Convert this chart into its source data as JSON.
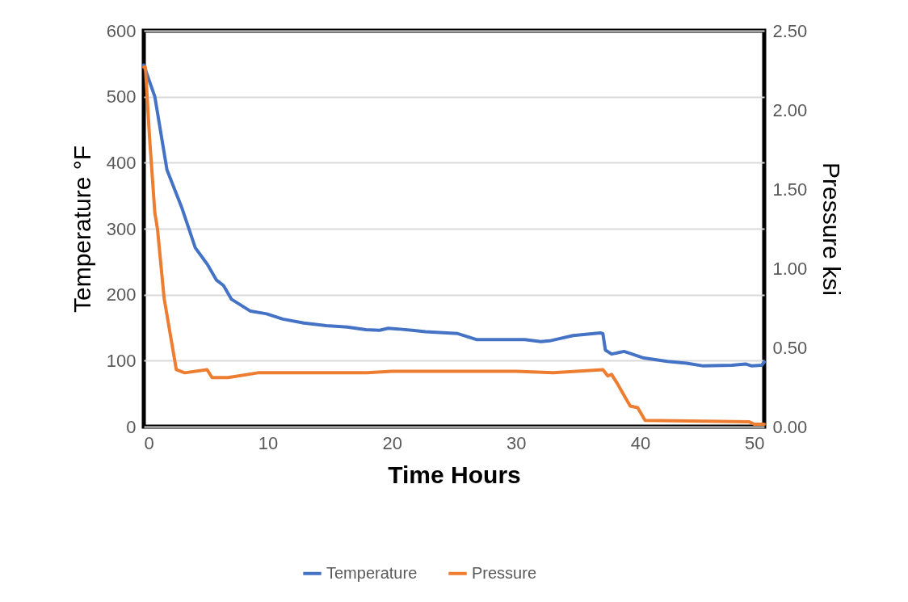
{
  "chart_data": {
    "type": "line",
    "xlabel": "Time Hours",
    "ylabel": "Temperature °F",
    "y2label": "Pressure ksi",
    "xlim": [
      0,
      50
    ],
    "xticks": [
      0,
      10,
      20,
      30,
      40,
      50
    ],
    "ylim": [
      0,
      600
    ],
    "yticks": [
      0,
      100,
      200,
      300,
      400,
      500,
      600
    ],
    "y2lim": [
      0,
      2.5
    ],
    "y2ticks": [
      {
        "value": 0,
        "label": "0.00"
      },
      {
        "value": 0.5,
        "label": "0.50"
      },
      {
        "value": 1,
        "label": "1.00"
      },
      {
        "value": 1.5,
        "label": "1.50"
      },
      {
        "value": 2,
        "label": "2.00"
      },
      {
        "value": 2.5,
        "label": "2.50"
      }
    ],
    "grid": "y",
    "legend": "bottom",
    "marker": "none",
    "line_style": "solid",
    "series": [
      {
        "name": "Temperature",
        "color": "#4472c4",
        "x": [
          0,
          0.89,
          1.87,
          3.06,
          4.15,
          5.12,
          5.86,
          6.42,
          7.07,
          8.6,
          9.9,
          11.2,
          12.9,
          14.7,
          16.4,
          17.9,
          19.0,
          19.7,
          20.5,
          22.7,
          25.3,
          26.8,
          30.7,
          32.0,
          32.7,
          34.6,
          36.8,
          37.0,
          37.2,
          37.7,
          38.7,
          39.2,
          40.3,
          42.2,
          43.75,
          45.1,
          47.4,
          48.5,
          49.0,
          49.8,
          50
        ],
        "values": [
          548,
          500,
          389,
          332,
          271,
          246,
          222,
          214,
          193,
          175,
          171,
          163,
          157,
          153,
          151,
          147,
          146,
          149,
          148,
          144,
          141,
          132,
          132,
          129,
          130,
          138,
          142,
          141,
          116,
          110,
          114,
          111,
          104,
          99,
          96,
          92,
          93,
          95,
          92,
          93,
          98
        ]
      },
      {
        "name": "Pressure",
        "color": "#ed7d31",
        "axis": "y2",
        "x": [
          0,
          0.13,
          0.46,
          0.89,
          1.1,
          1.64,
          2.62,
          3.3,
          5.1,
          5.5,
          6.8,
          9.2,
          12,
          15,
          18,
          20,
          25,
          30,
          33,
          37.0,
          37.4,
          37.7,
          38.1,
          39.2,
          39.8,
          40.4,
          48.8,
          49.2,
          50
        ],
        "values": [
          2.27,
          2.27,
          1.83,
          1.35,
          1.25,
          0.81,
          0.36,
          0.34,
          0.36,
          0.31,
          0.31,
          0.34,
          0.34,
          0.34,
          0.34,
          0.35,
          0.35,
          0.35,
          0.34,
          0.36,
          0.32,
          0.33,
          0.28,
          0.13,
          0.12,
          0.04,
          0.03,
          0.015,
          0.015
        ]
      }
    ]
  }
}
